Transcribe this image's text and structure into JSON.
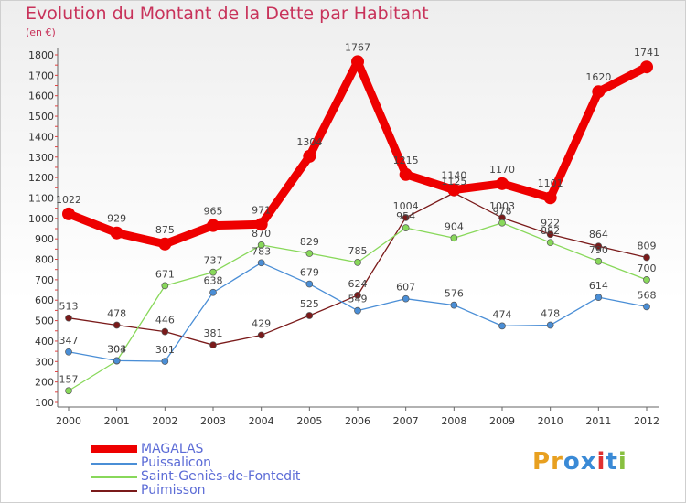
{
  "chart_data": {
    "type": "line",
    "title": "Evolution du Montant de la Dette par Habitant",
    "subtitle": "(en €)",
    "categories": [
      "2000",
      "2001",
      "2002",
      "2003",
      "2004",
      "2005",
      "2006",
      "2007",
      "2008",
      "2009",
      "2010",
      "2011",
      "2012"
    ],
    "ylim": [
      100,
      1800
    ],
    "yticks": [
      100,
      200,
      300,
      400,
      500,
      600,
      700,
      800,
      900,
      1000,
      1100,
      1200,
      1300,
      1400,
      1500,
      1600,
      1700,
      1800
    ],
    "grid": false,
    "legend_position": "bottom-left",
    "series": [
      {
        "name": "MAGALAS",
        "color": "#ee0000",
        "values": [
          1022,
          929,
          875,
          965,
          971,
          1304,
          1767,
          1215,
          1140,
          1170,
          1101,
          1620,
          1741
        ]
      },
      {
        "name": "Puissalicon",
        "color": "#4a8ed6",
        "values": [
          347,
          304,
          301,
          638,
          783,
          679,
          549,
          607,
          576,
          474,
          478,
          614,
          568
        ]
      },
      {
        "name": "Saint-Geniès-de-Fontedit",
        "color": "#88d85a",
        "values": [
          157,
          303,
          671,
          737,
          870,
          829,
          785,
          954,
          904,
          978,
          882,
          790,
          700
        ]
      },
      {
        "name": "Puimisson",
        "color": "#7a1a1a",
        "values": [
          513,
          478,
          446,
          381,
          429,
          525,
          624,
          1004,
          1125,
          1003,
          922,
          864,
          809
        ]
      }
    ]
  },
  "logo": {
    "text": "Proxiti",
    "letters": [
      "P",
      "r",
      "o",
      "x",
      "i",
      "t",
      "i"
    ],
    "colors": [
      "#e8a020",
      "#e8a020",
      "#3a8ad6",
      "#3a8ad6",
      "#e03030",
      "#3a8ad6",
      "#88c040"
    ]
  }
}
